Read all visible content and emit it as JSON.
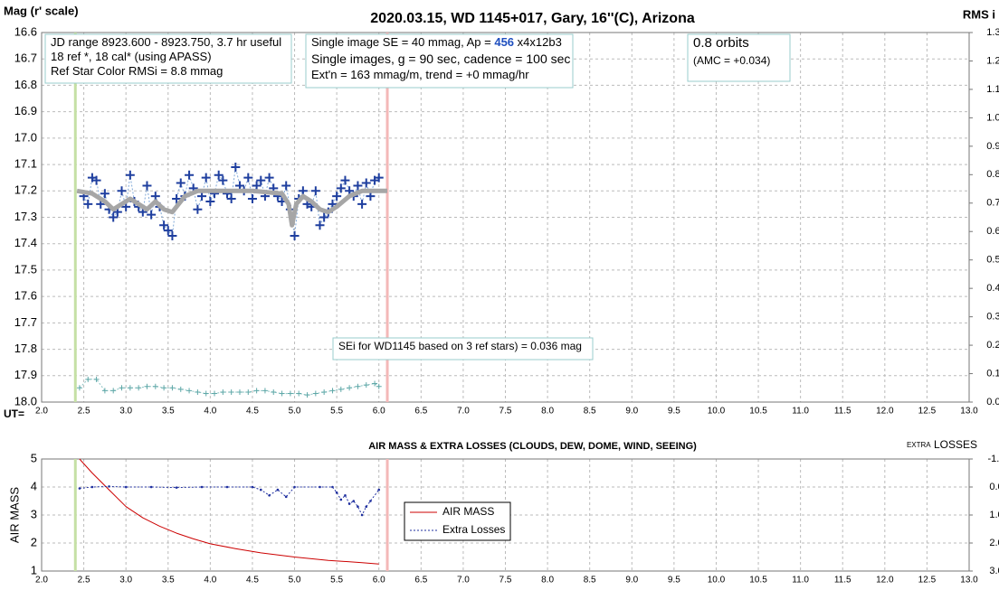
{
  "chart_data": [
    {
      "type": "scatter",
      "title": "2020.03.15, WD 1145+017, Gary, 16''(C), Arizona",
      "y_label": "Mag (r' scale)",
      "y2_label": "RMS i",
      "x_label": "UT=",
      "xlim": [
        2.0,
        13.0
      ],
      "xticks": [
        {
          "value": 2,
          "label": "2.0"
        },
        2.5,
        {
          "value": 3,
          "label": "3.0"
        },
        3.5,
        {
          "value": 4,
          "label": "4.0"
        },
        4.5,
        {
          "value": 5,
          "label": "5.0"
        },
        5.5,
        {
          "value": 6,
          "label": "6.0"
        },
        6.5,
        {
          "value": 7,
          "label": "7.0"
        },
        7.5,
        {
          "value": 8,
          "label": "8.0"
        },
        8.5,
        {
          "value": 9,
          "label": "9.0"
        },
        9.5,
        {
          "value": 10,
          "label": "10.0"
        },
        10.5,
        {
          "value": 11,
          "label": "11.0"
        },
        11.5,
        {
          "value": 12,
          "label": "12.0"
        },
        12.5,
        {
          "value": 13,
          "label": "13.0"
        }
      ],
      "ylim": [
        18.0,
        16.6
      ],
      "yticks": [
        16.6,
        16.7,
        16.8,
        16.9,
        {
          "value": 17,
          "label": "17.0"
        },
        17.1,
        17.2,
        17.3,
        17.4,
        17.5,
        17.6,
        17.7,
        17.8,
        17.9,
        {
          "value": 18,
          "label": "18.0"
        }
      ],
      "y2lim": [
        0,
        1.3
      ],
      "y2ticks": [
        {
          "value": 0,
          "label": "0.00"
        },
        {
          "value": 0.1,
          "label": "0.10"
        },
        {
          "value": 0.2,
          "label": "0.20"
        },
        {
          "value": 0.3,
          "label": "0.30"
        },
        {
          "value": 0.4,
          "label": "0.40"
        },
        {
          "value": 0.5,
          "label": "0.50"
        },
        {
          "value": 0.6,
          "label": "0.60"
        },
        {
          "value": 0.7,
          "label": "0.70"
        },
        {
          "value": 0.8,
          "label": "0.80"
        },
        {
          "value": 0.9,
          "label": "0.90"
        },
        {
          "value": 1,
          "label": "1.00"
        },
        {
          "value": 1.1,
          "label": "1.10"
        },
        {
          "value": 1.2,
          "label": "1.20"
        },
        {
          "value": 1.3,
          "label": "1.30"
        }
      ],
      "grid": true,
      "vlines": [
        {
          "x": 2.4,
          "color": "#c5e0a5"
        },
        {
          "x": 6.1,
          "color": "#f4b8b8"
        }
      ],
      "series": [
        {
          "style": "markers-line",
          "color": "#1f3f9f",
          "line_color": "#7fa8d8",
          "x": [
            2.5,
            2.55,
            2.6,
            2.65,
            2.7,
            2.75,
            2.8,
            2.85,
            2.9,
            2.95,
            3.0,
            3.05,
            3.1,
            3.15,
            3.2,
            3.25,
            3.3,
            3.35,
            3.4,
            3.45,
            3.5,
            3.55,
            3.6,
            3.65,
            3.7,
            3.75,
            3.8,
            3.85,
            3.9,
            3.95,
            4.0,
            4.05,
            4.1,
            4.15,
            4.2,
            4.25,
            4.3,
            4.35,
            4.4,
            4.45,
            4.5,
            4.55,
            4.6,
            4.65,
            4.7,
            4.75,
            4.8,
            4.85,
            4.9,
            4.95,
            5.0,
            5.05,
            5.1,
            5.15,
            5.2,
            5.25,
            5.3,
            5.35,
            5.4,
            5.45,
            5.5,
            5.55,
            5.6,
            5.65,
            5.7,
            5.75,
            5.8,
            5.85,
            5.9,
            5.95,
            6.0
          ],
          "values": [
            17.22,
            17.25,
            17.15,
            17.16,
            17.25,
            17.21,
            17.27,
            17.3,
            17.28,
            17.2,
            17.26,
            17.14,
            17.24,
            17.26,
            17.28,
            17.18,
            17.29,
            17.22,
            17.26,
            17.33,
            17.35,
            17.37,
            17.23,
            17.17,
            17.22,
            17.14,
            17.19,
            17.27,
            17.22,
            17.15,
            17.24,
            17.21,
            17.14,
            17.16,
            17.21,
            17.23,
            17.11,
            17.18,
            17.2,
            17.15,
            17.23,
            17.18,
            17.16,
            17.22,
            17.15,
            17.19,
            17.22,
            17.24,
            17.18,
            17.27,
            17.37,
            17.23,
            17.2,
            17.25,
            17.26,
            17.2,
            17.33,
            17.3,
            17.28,
            17.25,
            17.22,
            17.19,
            17.16,
            17.2,
            17.22,
            17.18,
            17.25,
            17.17,
            17.22,
            17.16,
            17.15
          ]
        },
        {
          "style": "line",
          "color": "#a6a6a6",
          "x": [
            2.42,
            2.6,
            2.75,
            2.85,
            2.95,
            3.05,
            3.15,
            3.25,
            3.35,
            3.45,
            3.55,
            3.7,
            3.85,
            4.0,
            4.5,
            4.85,
            4.93,
            4.97,
            5.02,
            5.1,
            5.2,
            5.3,
            5.4,
            5.5,
            5.65,
            5.8,
            6.1
          ],
          "values": [
            17.2,
            17.21,
            17.24,
            17.27,
            17.25,
            17.23,
            17.25,
            17.27,
            17.24,
            17.27,
            17.28,
            17.22,
            17.2,
            17.2,
            17.2,
            17.21,
            17.25,
            17.33,
            17.25,
            17.22,
            17.24,
            17.27,
            17.28,
            17.26,
            17.22,
            17.2,
            17.2
          ]
        },
        {
          "style": "markers-line",
          "color": "#5fa8a8",
          "line_color": "#8cc4c4",
          "axis": "y2",
          "x": [
            2.45,
            2.55,
            2.65,
            2.75,
            2.85,
            2.95,
            3.05,
            3.15,
            3.25,
            3.35,
            3.45,
            3.55,
            3.65,
            3.75,
            3.85,
            3.95,
            4.05,
            4.15,
            4.25,
            4.35,
            4.45,
            4.55,
            4.65,
            4.75,
            4.85,
            4.95,
            5.05,
            5.15,
            5.25,
            5.35,
            5.45,
            5.55,
            5.65,
            5.75,
            5.85,
            5.95,
            6.0
          ],
          "values": [
            0.05,
            0.08,
            0.08,
            0.04,
            0.04,
            0.05,
            0.05,
            0.05,
            0.055,
            0.055,
            0.05,
            0.05,
            0.045,
            0.04,
            0.035,
            0.03,
            0.03,
            0.035,
            0.035,
            0.035,
            0.035,
            0.04,
            0.04,
            0.035,
            0.03,
            0.03,
            0.03,
            0.025,
            0.03,
            0.035,
            0.04,
            0.045,
            0.05,
            0.055,
            0.06,
            0.065,
            0.055
          ]
        }
      ],
      "annotations": [
        {
          "lines": [
            [
              "JD range 8923.600 - 8923.750, 3.7 hr useful"
            ],
            [
              "18 ref *, 18 cal* (using APASS)"
            ],
            [
              "Ref Star Color RMSi = 8.8 mmag"
            ]
          ]
        },
        {
          "lines": [
            [
              "Single image SE = 40 mmag, Ap = ",
              "456",
              " x4x12b3"
            ],
            [
              "Single images, g = 90 sec, cadence = 100 sec"
            ],
            [
              "Ext'n = 163 mmag/m, trend = +0 mmag/hr"
            ]
          ]
        },
        {
          "lines": [
            [
              "0.8 orbits"
            ],
            [
              "(AMC = +0.034)"
            ]
          ]
        },
        {
          "lines": [
            [
              "SEi for WD1145 based on 3 ref stars) = 0.036 mag"
            ]
          ]
        }
      ]
    },
    {
      "type": "line",
      "title": "AIR MASS & EXTRA LOSSES (CLOUDS, DEW, DOME, WIND, SEEING)",
      "y_label": "AIR MASS",
      "y2_label": [
        "EXTRA",
        " LOSSES"
      ],
      "xlim": [
        2.0,
        13.0
      ],
      "xticks": [
        {
          "value": 2,
          "label": "2.0"
        },
        2.5,
        {
          "value": 3,
          "label": "3.0"
        },
        3.5,
        {
          "value": 4,
          "label": "4.0"
        },
        4.5,
        {
          "value": 5,
          "label": "5.0"
        },
        5.5,
        {
          "value": 6,
          "label": "6.0"
        },
        6.5,
        {
          "value": 7,
          "label": "7.0"
        },
        7.5,
        {
          "value": 8,
          "label": "8.0"
        },
        8.5,
        {
          "value": 9,
          "label": "9.0"
        },
        9.5,
        {
          "value": 10,
          "label": "10.0"
        },
        10.5,
        {
          "value": 11,
          "label": "11.0"
        },
        11.5,
        {
          "value": 12,
          "label": "12.0"
        },
        12.5,
        {
          "value": 13,
          "label": "13.0"
        }
      ],
      "ylim": [
        1,
        5
      ],
      "yticks": [
        1,
        2,
        3,
        4,
        5
      ],
      "y2lim": [
        3.0,
        -1.0
      ],
      "y2ticks": [
        {
          "value": -1,
          "label": "-1.0"
        },
        {
          "value": 0,
          "label": "0.0"
        },
        {
          "value": 1,
          "label": "1.0"
        },
        {
          "value": 2,
          "label": "2.0"
        },
        {
          "value": 3,
          "label": "3.0"
        }
      ],
      "grid": true,
      "vlines": [
        {
          "x": 2.4,
          "color": "#c5e0a5"
        },
        {
          "x": 6.1,
          "color": "#f4b8b8"
        }
      ],
      "legend": "center",
      "series": [
        {
          "name": "AIR MASS",
          "style": "line",
          "color": "#cc0000",
          "x": [
            2.45,
            2.6,
            2.8,
            3.0,
            3.2,
            3.4,
            3.6,
            3.8,
            4.0,
            4.3,
            4.6,
            5.0,
            5.4,
            5.8,
            6.0
          ],
          "values": [
            5.0,
            4.5,
            3.9,
            3.3,
            2.9,
            2.6,
            2.35,
            2.15,
            1.97,
            1.8,
            1.65,
            1.5,
            1.38,
            1.3,
            1.25
          ]
        },
        {
          "name": "Extra Losses",
          "style": "dots-line",
          "color": "#1f2f9f",
          "axis": "y2",
          "x": [
            2.45,
            2.6,
            2.8,
            3.0,
            3.3,
            3.6,
            3.9,
            4.2,
            4.5,
            4.6,
            4.7,
            4.8,
            4.9,
            5.0,
            5.3,
            5.45,
            5.5,
            5.55,
            5.6,
            5.65,
            5.7,
            5.75,
            5.8,
            5.85,
            5.9,
            6.0
          ],
          "values": [
            0.05,
            0.0,
            -0.02,
            0.0,
            0.0,
            0.02,
            0.0,
            0.0,
            0.0,
            0.1,
            0.3,
            0.1,
            0.35,
            0.0,
            0.0,
            0.0,
            0.2,
            0.45,
            0.3,
            0.6,
            0.5,
            0.7,
            1.0,
            0.7,
            0.5,
            0.1
          ]
        }
      ]
    }
  ]
}
